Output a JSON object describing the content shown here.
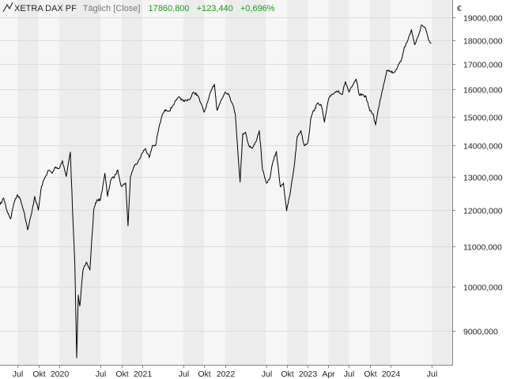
{
  "header": {
    "instrument": "XETRA DAX PF",
    "interval": "Täglich [Close]",
    "last": "17860,800",
    "change": "+123,440",
    "change_pct": "+0,696%",
    "currency": "€"
  },
  "colors": {
    "line": "#000000",
    "change_positive": "#1a9a1a",
    "band_a": "#f6f6f6",
    "band_b": "#ececec",
    "grid": "#dcdcdc",
    "label": "#555555"
  },
  "chart_data": {
    "type": "line",
    "title": "",
    "xlabel": "",
    "ylabel": "",
    "y_scale": "log",
    "ylim": [
      8300,
      19800
    ],
    "xlim": [
      "2019-04-15",
      "2024-09-28"
    ],
    "grid": true,
    "y_ticks": [
      9000,
      10000,
      11000,
      12000,
      13000,
      14000,
      15000,
      16000,
      17000,
      18000,
      19000
    ],
    "y_tick_labels": [
      "9000,000",
      "10000,000",
      "11000,000",
      "12000,000",
      "13000,000",
      "14000,000",
      "15000,000",
      "16000,000",
      "17000,000",
      "18000,000",
      "19000,000"
    ],
    "x_ticks": [
      {
        "date": "2019-07-01",
        "label": "Jul"
      },
      {
        "date": "2019-10-01",
        "label": "Okt"
      },
      {
        "date": "2020-01-01",
        "label": "2020"
      },
      {
        "date": "2020-07-01",
        "label": "Jul"
      },
      {
        "date": "2020-10-01",
        "label": "Okt"
      },
      {
        "date": "2021-01-01",
        "label": "2021"
      },
      {
        "date": "2021-07-01",
        "label": "Jul"
      },
      {
        "date": "2021-10-01",
        "label": "Okt"
      },
      {
        "date": "2022-01-01",
        "label": "2022"
      },
      {
        "date": "2022-07-01",
        "label": "Jul"
      },
      {
        "date": "2022-10-01",
        "label": "Okt"
      },
      {
        "date": "2023-01-01",
        "label": "2023"
      },
      {
        "date": "2023-04-01",
        "label": "Apr"
      },
      {
        "date": "2023-07-01",
        "label": "Jul"
      },
      {
        "date": "2023-10-01",
        "label": "Okt"
      },
      {
        "date": "2024-01-01",
        "label": "2024"
      },
      {
        "date": "2024-07-01",
        "label": "Jul"
      }
    ],
    "series": [
      {
        "name": "XETRA DAX PF",
        "points": [
          [
            "2019-04-15",
            12150
          ],
          [
            "2019-05-01",
            12350
          ],
          [
            "2019-05-15",
            12000
          ],
          [
            "2019-06-01",
            11750
          ],
          [
            "2019-06-15",
            12200
          ],
          [
            "2019-07-01",
            12450
          ],
          [
            "2019-07-15",
            12300
          ],
          [
            "2019-08-01",
            11900
          ],
          [
            "2019-08-15",
            11450
          ],
          [
            "2019-09-01",
            11900
          ],
          [
            "2019-09-15",
            12400
          ],
          [
            "2019-10-01",
            12000
          ],
          [
            "2019-10-15",
            12700
          ],
          [
            "2019-11-01",
            13000
          ],
          [
            "2019-11-15",
            13200
          ],
          [
            "2019-12-01",
            13100
          ],
          [
            "2019-12-15",
            13300
          ],
          [
            "2020-01-01",
            13250
          ],
          [
            "2020-01-15",
            13500
          ],
          [
            "2020-02-01",
            13000
          ],
          [
            "2020-02-19",
            13780
          ],
          [
            "2020-03-01",
            11800
          ],
          [
            "2020-03-10",
            10500
          ],
          [
            "2020-03-18",
            8440
          ],
          [
            "2020-03-25",
            9800
          ],
          [
            "2020-04-01",
            9550
          ],
          [
            "2020-04-15",
            10400
          ],
          [
            "2020-05-01",
            10600
          ],
          [
            "2020-05-15",
            10400
          ],
          [
            "2020-06-01",
            12000
          ],
          [
            "2020-06-15",
            12300
          ],
          [
            "2020-07-01",
            12300
          ],
          [
            "2020-07-20",
            13100
          ],
          [
            "2020-08-01",
            12400
          ],
          [
            "2020-08-15",
            12900
          ],
          [
            "2020-09-01",
            13000
          ],
          [
            "2020-09-15",
            13200
          ],
          [
            "2020-10-01",
            12700
          ],
          [
            "2020-10-20",
            12800
          ],
          [
            "2020-10-30",
            11560
          ],
          [
            "2020-11-10",
            13000
          ],
          [
            "2020-11-25",
            13300
          ],
          [
            "2020-12-15",
            13500
          ],
          [
            "2021-01-01",
            13750
          ],
          [
            "2021-01-15",
            13900
          ],
          [
            "2021-02-01",
            13600
          ],
          [
            "2021-02-15",
            14000
          ],
          [
            "2021-03-01",
            14000
          ],
          [
            "2021-03-15",
            14600
          ],
          [
            "2021-04-01",
            15100
          ],
          [
            "2021-04-15",
            15250
          ],
          [
            "2021-05-01",
            15200
          ],
          [
            "2021-05-15",
            15400
          ],
          [
            "2021-06-01",
            15600
          ],
          [
            "2021-06-15",
            15700
          ],
          [
            "2021-07-01",
            15550
          ],
          [
            "2021-07-15",
            15600
          ],
          [
            "2021-08-01",
            15650
          ],
          [
            "2021-08-15",
            15900
          ],
          [
            "2021-09-01",
            15800
          ],
          [
            "2021-09-15",
            15500
          ],
          [
            "2021-10-01",
            15150
          ],
          [
            "2021-10-15",
            15500
          ],
          [
            "2021-11-01",
            15950
          ],
          [
            "2021-11-15",
            16200
          ],
          [
            "2021-11-26",
            15250
          ],
          [
            "2021-12-01",
            15300
          ],
          [
            "2021-12-15",
            15600
          ],
          [
            "2022-01-01",
            15900
          ],
          [
            "2022-01-15",
            15850
          ],
          [
            "2022-02-01",
            15500
          ],
          [
            "2022-02-15",
            15100
          ],
          [
            "2022-03-08",
            12830
          ],
          [
            "2022-03-20",
            14400
          ],
          [
            "2022-04-01",
            14450
          ],
          [
            "2022-04-15",
            14000
          ],
          [
            "2022-05-01",
            13900
          ],
          [
            "2022-05-15",
            14100
          ],
          [
            "2022-06-01",
            14500
          ],
          [
            "2022-06-15",
            13200
          ],
          [
            "2022-07-01",
            12800
          ],
          [
            "2022-07-15",
            12900
          ],
          [
            "2022-08-01",
            13500
          ],
          [
            "2022-08-15",
            13800
          ],
          [
            "2022-09-01",
            12700
          ],
          [
            "2022-09-15",
            12800
          ],
          [
            "2022-09-29",
            11980
          ],
          [
            "2022-10-15",
            12500
          ],
          [
            "2022-11-01",
            13300
          ],
          [
            "2022-11-15",
            14300
          ],
          [
            "2022-12-01",
            14500
          ],
          [
            "2022-12-15",
            14000
          ],
          [
            "2023-01-01",
            14100
          ],
          [
            "2023-01-15",
            15000
          ],
          [
            "2023-02-01",
            15300
          ],
          [
            "2023-02-15",
            15500
          ],
          [
            "2023-03-01",
            15400
          ],
          [
            "2023-03-15",
            14800
          ],
          [
            "2023-04-01",
            15600
          ],
          [
            "2023-04-15",
            15800
          ],
          [
            "2023-05-01",
            15900
          ],
          [
            "2023-05-15",
            15950
          ],
          [
            "2023-06-01",
            15800
          ],
          [
            "2023-06-15",
            16300
          ],
          [
            "2023-07-01",
            15900
          ],
          [
            "2023-07-15",
            16100
          ],
          [
            "2023-08-01",
            16400
          ],
          [
            "2023-08-15",
            15800
          ],
          [
            "2023-09-01",
            15800
          ],
          [
            "2023-09-15",
            15700
          ],
          [
            "2023-10-01",
            15200
          ],
          [
            "2023-10-15",
            15100
          ],
          [
            "2023-10-26",
            14700
          ],
          [
            "2023-11-15",
            15600
          ],
          [
            "2023-12-01",
            16200
          ],
          [
            "2023-12-15",
            16750
          ],
          [
            "2024-01-01",
            16700
          ],
          [
            "2024-01-15",
            16650
          ],
          [
            "2024-02-01",
            16900
          ],
          [
            "2024-02-15",
            17100
          ],
          [
            "2024-03-01",
            17700
          ],
          [
            "2024-03-15",
            17950
          ],
          [
            "2024-04-01",
            18450
          ],
          [
            "2024-04-15",
            17800
          ],
          [
            "2024-05-01",
            18150
          ],
          [
            "2024-05-15",
            18650
          ],
          [
            "2024-06-01",
            18550
          ],
          [
            "2024-06-15",
            18000
          ],
          [
            "2024-06-28",
            17860
          ]
        ]
      }
    ]
  }
}
